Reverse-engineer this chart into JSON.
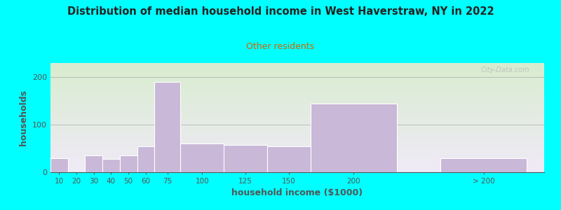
{
  "title": "Distribution of median household income in West Haverstraw, NY in 2022",
  "subtitle": "Other residents",
  "xlabel": "household income ($1000)",
  "ylabel": "households",
  "background_color": "#00FFFF",
  "bar_color": "#c9b8d8",
  "bar_edge_color": "#ffffff",
  "bar_categories": [
    "10",
    "20",
    "30",
    "40",
    "50",
    "60",
    "75",
    "100",
    "125",
    "150",
    "200",
    "> 200"
  ],
  "bar_heights": [
    30,
    0,
    35,
    28,
    35,
    55,
    190,
    60,
    57,
    55,
    145,
    30
  ],
  "bar_widths_relative": [
    10,
    10,
    10,
    10,
    10,
    10,
    15,
    25,
    25,
    25,
    50,
    50
  ],
  "bar_lefts": [
    0,
    10,
    20,
    30,
    40,
    50,
    60,
    75,
    100,
    125,
    150,
    225
  ],
  "yticks": [
    0,
    100,
    200
  ],
  "ylim": [
    0,
    230
  ],
  "xlim_right": 285,
  "grid_color": "#bbbbbb",
  "title_color": "#222222",
  "subtitle_color": "#cc6600",
  "axis_label_color": "#555555",
  "tick_color": "#555555",
  "watermark": "City-Data.com",
  "plot_grad_top": "#d8edcf",
  "plot_grad_bottom": "#f0eaf7"
}
